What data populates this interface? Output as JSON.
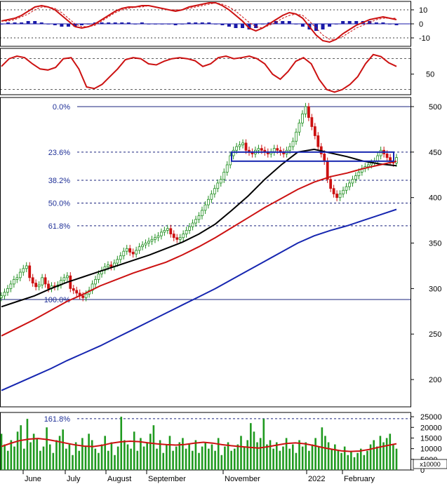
{
  "colors": {
    "background": "#ffffff",
    "panel_border": "#000000",
    "grid_dotted": "#000000",
    "fib_line": "#1a237e",
    "fib_label": "#1e2f97",
    "up_candle": "#1f8f1f",
    "down_candle": "#cc1111",
    "ma_short": "#000000",
    "ma_mid": "#cc1111",
    "ma_long": "#1626b0",
    "macd_line": "#cc1111",
    "macd_signal": "#cc1111",
    "macd_hist": "#1a1aa8",
    "volume_bar": "#1f9a1f",
    "volume_ma": "#cc1111",
    "box": "#1626b0",
    "axis_text": "#000000"
  },
  "chart_data": [
    {
      "panel": "macd",
      "type": "line+histogram",
      "y_ticks": [
        "10",
        "0",
        "-10"
      ],
      "ylim": [
        -16,
        16
      ],
      "series": [
        {
          "values": [
            2,
            3,
            4,
            6,
            9,
            12,
            13,
            12,
            10,
            6,
            2,
            -2,
            -3,
            -2,
            0,
            3,
            6,
            9,
            11,
            12,
            12,
            13,
            13,
            12,
            11,
            10,
            9,
            10,
            12,
            13,
            14,
            15,
            15,
            13,
            10,
            6,
            2,
            -3,
            -5,
            -3,
            0,
            3,
            6,
            8,
            7,
            4,
            -2,
            -8,
            -12,
            -13,
            -11,
            -7,
            -4,
            -1,
            1,
            3,
            4,
            5,
            4,
            3
          ]
        },
        {
          "values": [
            2,
            2,
            3,
            5,
            7,
            10,
            12,
            12,
            11,
            8,
            4,
            0,
            -2,
            -2,
            -1,
            2,
            5,
            8,
            10,
            11,
            12,
            12,
            13,
            12,
            11,
            10,
            10,
            10,
            11,
            12,
            13,
            14,
            15,
            14,
            12,
            9,
            5,
            1,
            -2,
            -3,
            -1,
            1,
            4,
            6,
            7,
            6,
            2,
            -3,
            -8,
            -11,
            -11,
            -9,
            -6,
            -3,
            -1,
            1,
            3,
            4,
            4,
            4
          ]
        },
        {
          "values": [
            0,
            1,
            1,
            1,
            2,
            2,
            1,
            0,
            -1,
            -2,
            -2,
            -2,
            -1,
            0,
            1,
            1,
            1,
            1,
            1,
            1,
            0,
            1,
            0,
            0,
            0,
            0,
            -1,
            0,
            1,
            1,
            1,
            1,
            0,
            -1,
            -2,
            -3,
            -3,
            -4,
            -3,
            0,
            1,
            2,
            2,
            2,
            0,
            -2,
            -4,
            -5,
            -4,
            -2,
            0,
            2,
            2,
            2,
            2,
            2,
            1,
            1,
            0,
            -1
          ]
        }
      ]
    },
    {
      "panel": "stochastic",
      "type": "line",
      "y_ticks": [
        "50"
      ],
      "ylim": [
        10,
        100
      ],
      "series": [
        {
          "values": [
            65,
            80,
            85,
            82,
            70,
            60,
            58,
            63,
            80,
            82,
            60,
            25,
            22,
            30,
            45,
            60,
            78,
            82,
            80,
            70,
            68,
            75,
            80,
            82,
            80,
            76,
            65,
            70,
            82,
            85,
            80,
            82,
            85,
            80,
            70,
            50,
            40,
            55,
            75,
            82,
            70,
            40,
            20,
            15,
            20,
            30,
            45,
            70,
            88,
            84,
            72,
            65
          ]
        }
      ]
    },
    {
      "panel": "price",
      "type": "candlestick",
      "x_ticks": [
        "June",
        "July",
        "August",
        "September",
        "November",
        "2022",
        "February"
      ],
      "y_ticks": [
        "500",
        "450",
        "400",
        "350",
        "300",
        "250",
        "200"
      ],
      "ylim": [
        170,
        510
      ],
      "fibonacci": [
        {
          "label": "0.0%",
          "value": 500
        },
        {
          "label": "23.6%",
          "value": 450
        },
        {
          "label": "38.2%",
          "value": 419
        },
        {
          "label": "50.0%",
          "value": 394
        },
        {
          "label": "61.8%",
          "value": 369
        },
        {
          "label": "100.0%",
          "value": 288
        },
        {
          "label": "161.8%",
          "value": 157
        }
      ],
      "candles_close": [
        292,
        296,
        300,
        305,
        310,
        312,
        318,
        322,
        325,
        312,
        306,
        302,
        304,
        312,
        305,
        300,
        303,
        302,
        304,
        309,
        312,
        314,
        300,
        298,
        295,
        292,
        290,
        294,
        298,
        305,
        310,
        316,
        320,
        324,
        326,
        324,
        328,
        332,
        336,
        341,
        344,
        340,
        338,
        342,
        346,
        348,
        350,
        352,
        354,
        356,
        358,
        362,
        364,
        366,
        360,
        356,
        354,
        356,
        360,
        364,
        368,
        372,
        376,
        380,
        386,
        392,
        398,
        404,
        410,
        416,
        420,
        428,
        436,
        446,
        452,
        456,
        458,
        460,
        452,
        450,
        448,
        452,
        454,
        452,
        450,
        448,
        450,
        454,
        452,
        450,
        448,
        452,
        456,
        462,
        472,
        482,
        492,
        500,
        488,
        478,
        468,
        456,
        448,
        440,
        420,
        410,
        404,
        400,
        404,
        408,
        412,
        416,
        420,
        424,
        428,
        432,
        434,
        436,
        438,
        440,
        446,
        452,
        448,
        444,
        440,
        438,
        444
      ],
      "moving_averages": [
        {
          "values": [
            280,
            286,
            292,
            300,
            307,
            313,
            319,
            325,
            331,
            337,
            344,
            351,
            360,
            371,
            386,
            402,
            420,
            436,
            450,
            453,
            449,
            445,
            440,
            437,
            435
          ]
        },
        {
          "values": [
            248,
            257,
            266,
            276,
            286,
            294,
            303,
            310,
            317,
            323,
            329,
            337,
            346,
            356,
            367,
            378,
            389,
            399,
            409,
            417,
            423,
            427,
            432,
            436,
            440
          ]
        },
        {
          "values": [
            188,
            196,
            204,
            212,
            221,
            229,
            237,
            246,
            255,
            264,
            273,
            282,
            291,
            300,
            310,
            320,
            330,
            340,
            350,
            358,
            364,
            369,
            375,
            381,
            387
          ]
        }
      ],
      "box_range": [
        440,
        450
      ]
    },
    {
      "panel": "volume",
      "type": "bar",
      "y_ticks": [
        "25000",
        "20000",
        "15000",
        "10000",
        "5000",
        "0"
      ],
      "y_unit": "x10000",
      "ylim": [
        0,
        27000
      ],
      "values": [
        17000,
        12000,
        9000,
        14000,
        11000,
        18000,
        21000,
        10000,
        24000,
        13000,
        17000,
        15000,
        9000,
        11000,
        20000,
        12000,
        8000,
        14000,
        16000,
        19000,
        10000,
        12000,
        7000,
        13000,
        9000,
        15000,
        11000,
        17000,
        14000,
        10000,
        8000,
        12000,
        16000,
        9000,
        13000,
        7000,
        11000,
        25000,
        14000,
        12000,
        10000,
        18000,
        9000,
        15000,
        11000,
        13000,
        17000,
        21000,
        10000,
        14000,
        8000,
        12000,
        16000,
        9000,
        11000,
        13000,
        15000,
        10000,
        12000,
        9000,
        14000,
        8000,
        11000,
        13000,
        10000,
        12000,
        9000,
        15000,
        7000,
        11000,
        13000,
        9000,
        10000,
        12000,
        16000,
        11000,
        14000,
        22000,
        18000,
        13000,
        15000,
        24000,
        12000,
        14000,
        10000,
        13000,
        9000,
        11000,
        15000,
        10000,
        12000,
        8000,
        14000,
        11000,
        13000,
        9000,
        12000,
        15000,
        11000,
        20000,
        16000,
        13000,
        10000,
        12000,
        9000,
        8000,
        11000,
        7000,
        9000,
        6000,
        8000,
        10000,
        7000,
        9000,
        12000,
        14000,
        11000,
        16000,
        13000,
        15000,
        17000,
        12000,
        10000
      ],
      "moving_average": [
        11000,
        12500,
        13800,
        14500,
        14800,
        14300,
        13500,
        12600,
        11800,
        11200,
        11000,
        11600,
        12600,
        13200,
        13500,
        13300,
        12700,
        12200,
        11900,
        11700,
        12000,
        12600,
        13000,
        12600,
        11900,
        11400,
        11000,
        10600,
        10300,
        10900,
        11700,
        12400,
        12700,
        12300,
        11500,
        10500,
        9700,
        9000,
        8700,
        8900,
        9600,
        10600,
        11500,
        12300
      ]
    }
  ]
}
